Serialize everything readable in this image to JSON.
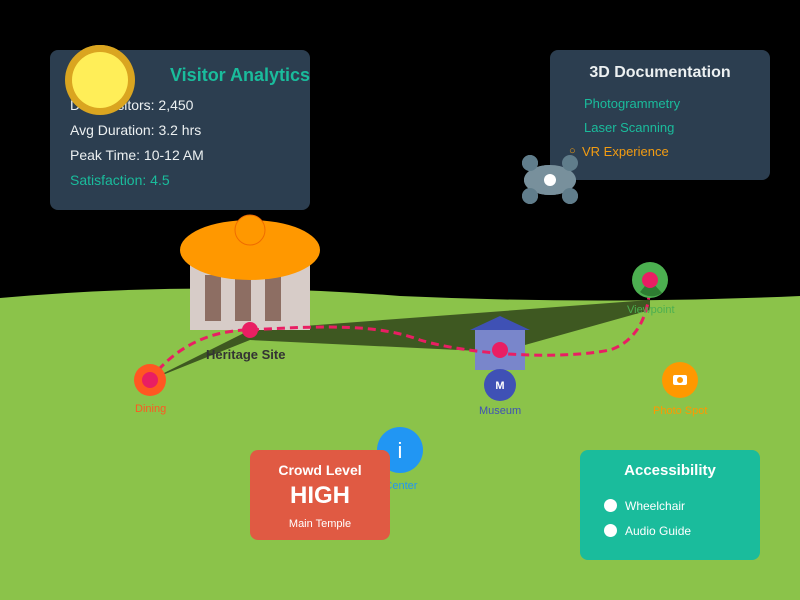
{
  "analytics": {
    "title": "Visitor Analytics",
    "daily_visitors": "Daily Visitors: 2,450",
    "avg_duration": "Avg Duration: 3.2 hrs",
    "peak_time": "Peak Time: 10-12 AM",
    "satisfaction": "Satisfaction: 4.5"
  },
  "documentation": {
    "title": "3D Documentation",
    "items": [
      "Photogrammetry",
      "Laser Scanning",
      "VR Experience"
    ],
    "active_marker": "○"
  },
  "map": {
    "heritage_site": "Heritage Site",
    "dining": "Dining",
    "museum": "Museum",
    "museum_icon": "M",
    "viewpoint": "Viewpoint",
    "photo_spot": "Photo Spot",
    "info_icon": "i",
    "info_center": "Info Center"
  },
  "crowd": {
    "title": "Crowd Level",
    "level": "HIGH",
    "location": "Main Temple"
  },
  "accessibility": {
    "title": "Accessibility",
    "options": [
      "Wheelchair",
      "Audio Guide"
    ]
  },
  "colors": {
    "sky": "#000000",
    "ground": "#8bc34a",
    "panel": "#2c3e50",
    "accent": "#1abc9c",
    "orange": "#ff9800",
    "path": "#e91e63",
    "crowd": "#e05a43",
    "museum": "#3f51b5",
    "info": "#2196f3",
    "viewpoint": "#4caf50"
  }
}
